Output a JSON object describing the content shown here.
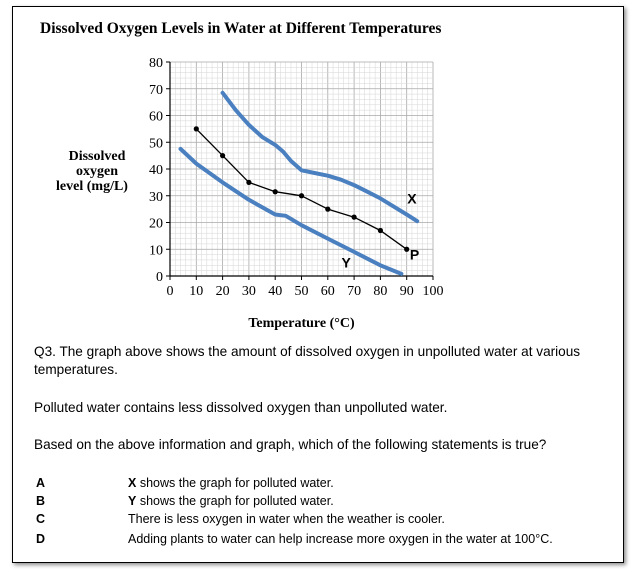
{
  "chart_data": {
    "type": "line",
    "title": "Dissolved Oxygen Levels in Water at Different Temperatures",
    "xlabel": "Temperature (°C)",
    "ylabel_lines": [
      "Dissolved",
      "oxygen",
      "level (mg/L)"
    ],
    "xlim": [
      0,
      100
    ],
    "ylim": [
      0,
      80
    ],
    "x_ticks": [
      0,
      10,
      20,
      30,
      40,
      50,
      60,
      70,
      80,
      90,
      100
    ],
    "y_ticks": [
      0,
      10,
      20,
      30,
      40,
      50,
      60,
      70,
      80
    ],
    "grid": true,
    "series": [
      {
        "name": "X",
        "color": "#4a7fc0",
        "x": [
          20,
          25,
          30,
          35,
          40,
          43,
          46,
          50,
          55,
          60,
          65,
          70,
          75,
          80,
          85,
          90,
          94
        ],
        "y": [
          68.5,
          62,
          56.5,
          52,
          49,
          46.5,
          43,
          39.5,
          38.5,
          37.5,
          36,
          34,
          31.5,
          29,
          26,
          23,
          20.5
        ]
      },
      {
        "name": "P",
        "color": "#000000",
        "markers": true,
        "x": [
          10,
          20,
          30,
          40,
          50,
          60,
          70,
          80,
          90
        ],
        "y": [
          55,
          45,
          35,
          31.5,
          30,
          25,
          22,
          17,
          10
        ]
      },
      {
        "name": "Y",
        "color": "#4a7fc0",
        "x": [
          4,
          10,
          20,
          30,
          40,
          44,
          50,
          60,
          70,
          80,
          88
        ],
        "y": [
          47.5,
          42,
          35,
          28.5,
          23,
          22.5,
          19,
          14,
          9,
          4,
          0.8
        ]
      }
    ],
    "annotations": [
      {
        "text": "X",
        "x": 92,
        "y": 29
      },
      {
        "text": "P",
        "x": 93,
        "y": 8
      },
      {
        "text": "Y",
        "x": 67,
        "y": 5
      }
    ]
  },
  "question": {
    "intro": "Q3. The graph above shows the amount of dissolved oxygen in unpolluted water at various temperatures.",
    "info": "Polluted water contains less dissolved oxygen than unpolluted water.",
    "prompt": "Based on the above information and graph, which of the following statements is true?",
    "options": [
      {
        "letter": "A",
        "bold": "X",
        "text": " shows the graph for polluted water."
      },
      {
        "letter": "B",
        "bold": "Y",
        "text": " shows the graph for polluted water."
      },
      {
        "letter": "C",
        "bold": "",
        "text": "There is less oxygen in water when the weather is cooler."
      },
      {
        "letter": "D",
        "bold": "",
        "text": "Adding plants to water can help increase more oxygen in the water at 100°C."
      }
    ]
  }
}
